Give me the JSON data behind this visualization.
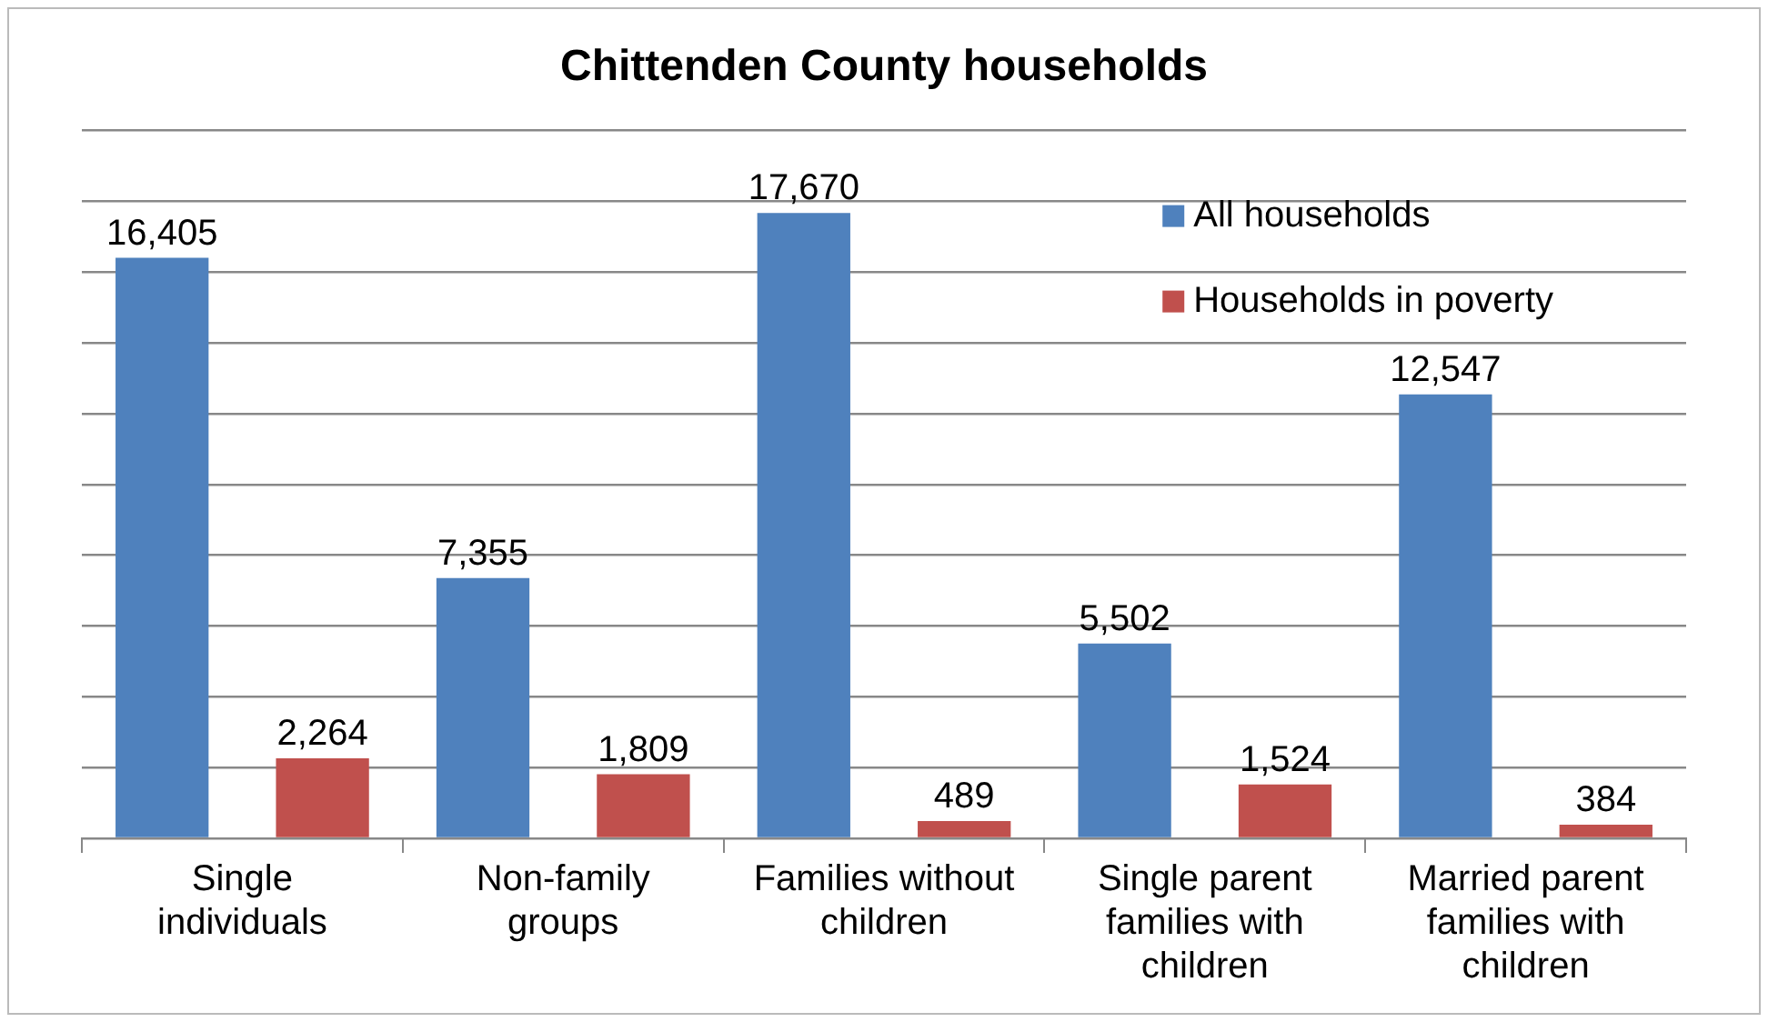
{
  "chart_data": {
    "type": "bar",
    "title": "Chittenden County households",
    "categories": [
      "Single individuals",
      "Non-family groups",
      "Families without children",
      "Single parent families with children",
      "Married parent families with children"
    ],
    "series": [
      {
        "name": "All households",
        "color": "#4f81bd",
        "values": [
          16405,
          7355,
          17670,
          5502,
          12547
        ],
        "value_labels": [
          "16,405",
          "7,355",
          "17,670",
          "5,502",
          "12,547"
        ]
      },
      {
        "name": "Households in poverty",
        "color": "#c0504d",
        "values": [
          2264,
          1809,
          489,
          1524,
          384
        ],
        "value_labels": [
          "2,264",
          "1,809",
          "489",
          "1,524",
          "384"
        ]
      }
    ],
    "ylim": [
      0,
      20000
    ],
    "yticks": [
      {
        "value": 0,
        "label": null
      },
      {
        "value": 2000,
        "label": null
      },
      {
        "value": 4000,
        "label": null
      },
      {
        "value": 6000,
        "label": null
      },
      {
        "value": 8000,
        "label": null
      },
      {
        "value": 10000,
        "label": null
      },
      {
        "value": 12000,
        "label": null
      },
      {
        "value": 14000,
        "label": null
      },
      {
        "value": 16000,
        "label": null
      },
      {
        "value": 18000,
        "label": null
      },
      {
        "value": 20000,
        "label": null
      }
    ],
    "tick_labels": "x",
    "grid": "y",
    "legend": "top right"
  }
}
